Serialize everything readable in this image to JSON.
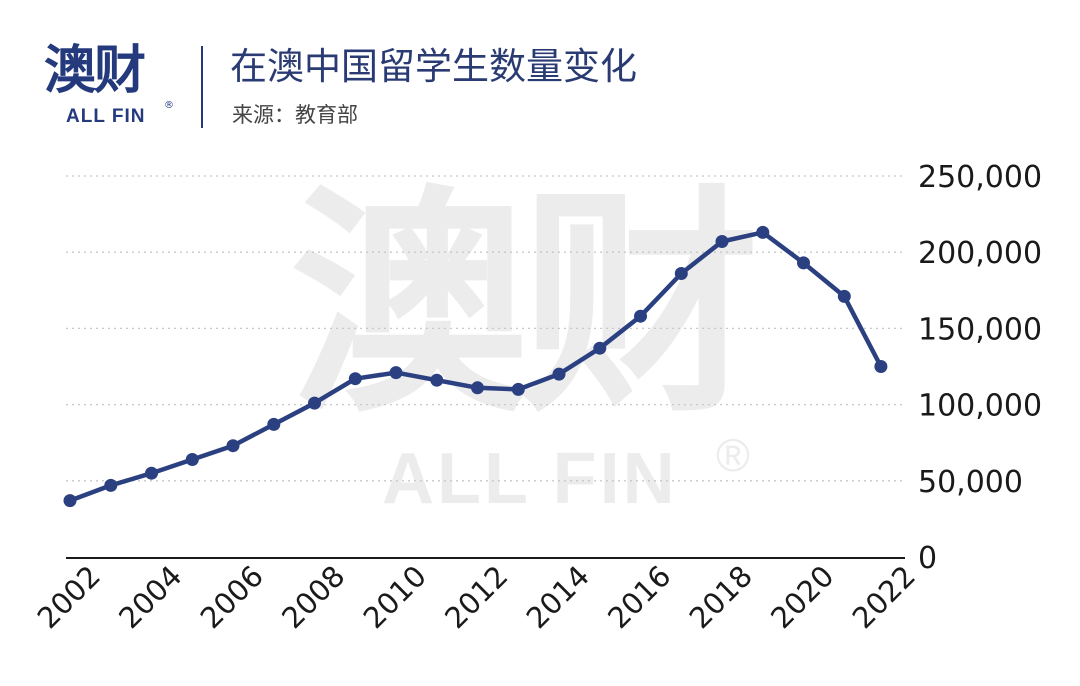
{
  "header": {
    "logo_cn": "澳财",
    "logo_en": "ALL FIN",
    "logo_reg": "®",
    "title": "在澳中国留学生数量变化",
    "source": "来源：教育部"
  },
  "watermark": {
    "cn": "澳财",
    "en": "ALL FIN",
    "reg": "®"
  },
  "colors": {
    "line": "#2b4080",
    "accent": "#243a7d",
    "grid": "#c8c8c8",
    "axis": "#1a1a1a",
    "text": "#1a1a1a"
  },
  "chart_data": {
    "type": "line",
    "title": "在澳中国留学生数量变化",
    "xlabel": "",
    "ylabel": "",
    "grid": true,
    "x_ticks": [
      "2002",
      "2004",
      "2006",
      "2008",
      "2010",
      "2012",
      "2014",
      "2016",
      "2018",
      "2020",
      "2022"
    ],
    "y_ticks": [
      "0",
      "50,000",
      "100,000",
      "150,000",
      "200,000",
      "250,000"
    ],
    "ylim": [
      0,
      250000
    ],
    "xlim": [
      2002,
      2022
    ],
    "series": [
      {
        "x": [
          2002,
          2003,
          2004,
          2005,
          2006,
          2007,
          2008,
          2009,
          2010,
          2011,
          2012,
          2013,
          2014,
          2015,
          2016,
          2017,
          2018,
          2019,
          2020,
          2021
        ],
        "values": [
          37000,
          47000,
          55000,
          64000,
          73000,
          87000,
          101000,
          117000,
          121000,
          116000,
          111000,
          110000,
          120000,
          137000,
          158000,
          186000,
          207000,
          213000,
          193000,
          171000
        ]
      }
    ],
    "final_point": {
      "x": 2021.9,
      "value": 125000
    }
  }
}
